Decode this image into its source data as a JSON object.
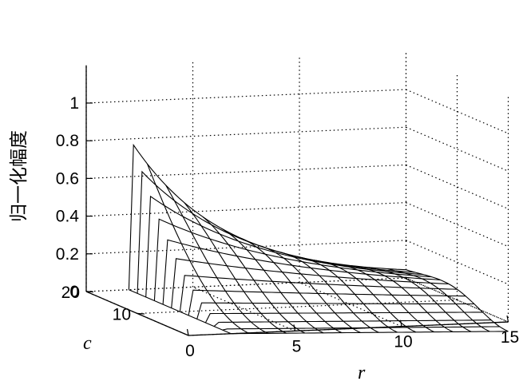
{
  "chart_data": {
    "type": "surface",
    "title": "",
    "xlabel": "r",
    "ylabel": "c",
    "zlabel": "归一化幅度",
    "x_ticks": [
      "0",
      "5",
      "10",
      "15"
    ],
    "y_ticks": [
      "10",
      "20"
    ],
    "z_ticks": [
      "0",
      "0.2",
      "0.4",
      "0.6",
      "0.8",
      "1"
    ],
    "xlim": [
      0,
      15
    ],
    "ylim": [
      0,
      20
    ],
    "zlim": [
      0,
      1
    ],
    "grid": true,
    "surface": {
      "r_start": 2,
      "r_end": 15,
      "r_lines": 16,
      "c_end": 20,
      "c_lines": 13,
      "peak_value": 0.77,
      "peak_r": 2.2,
      "peak_c": 20,
      "decay_rate": 0.14,
      "tail_depth": -0.05,
      "line_color": "#000000"
    }
  }
}
